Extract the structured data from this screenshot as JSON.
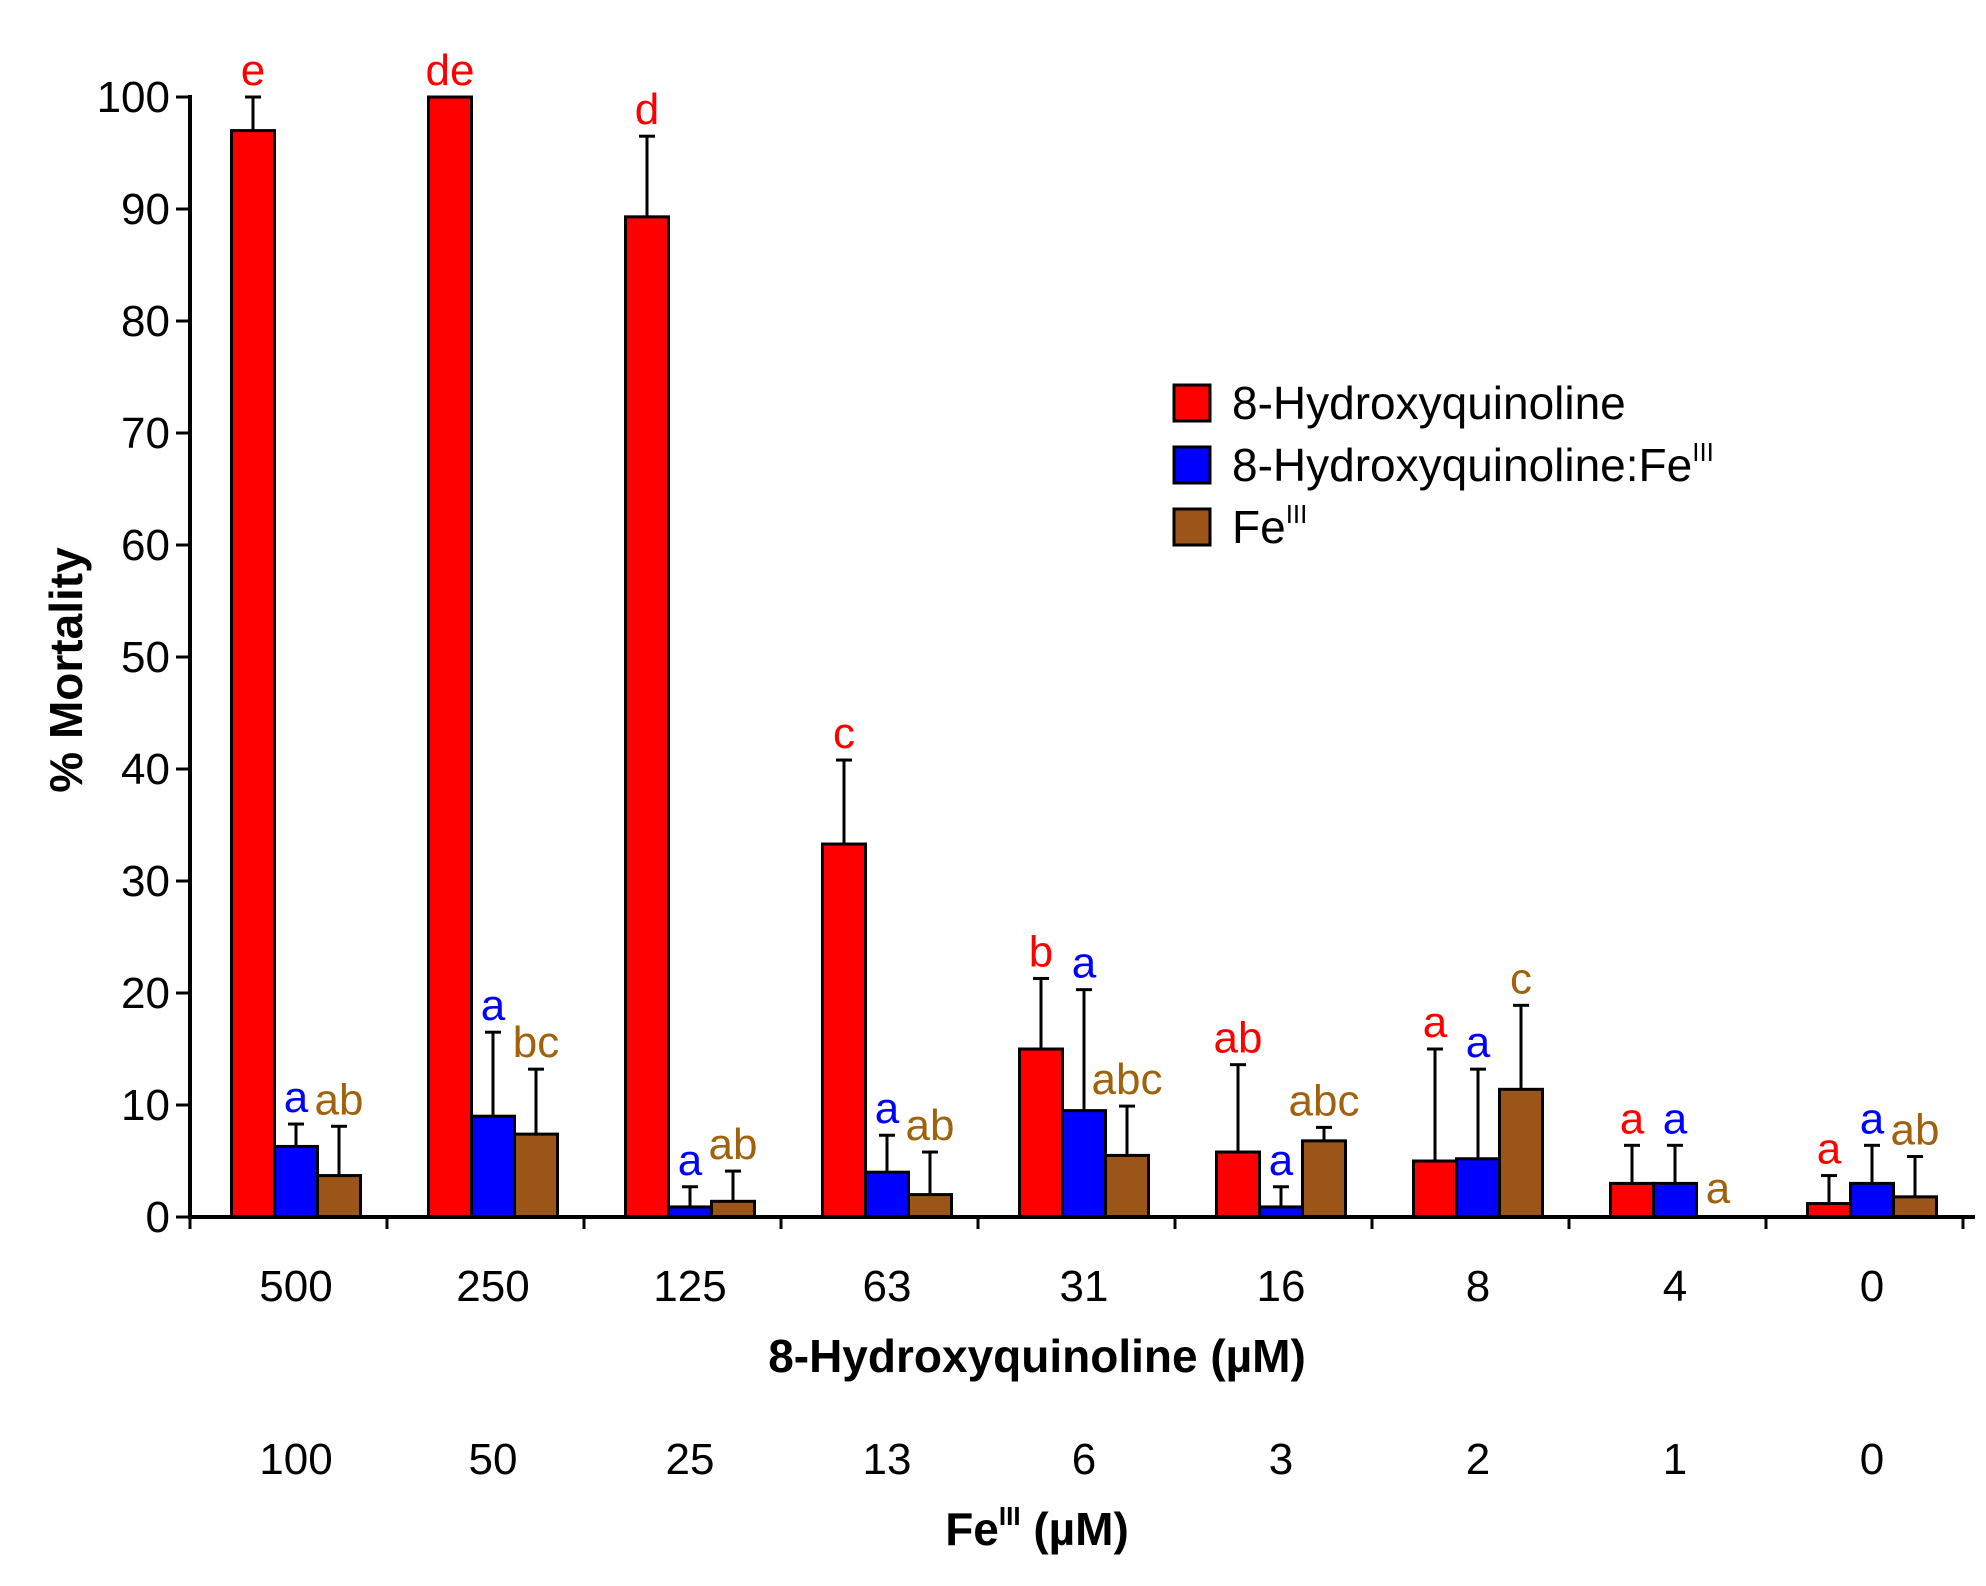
{
  "chart_data": {
    "type": "bar",
    "title": "",
    "ylabel": "% Mortality",
    "xlabel": "8-Hydroxyquinoline (µM)",
    "ylim": [
      0,
      100
    ],
    "yticks": [
      0,
      10,
      20,
      30,
      40,
      50,
      60,
      70,
      80,
      90,
      100
    ],
    "grid": false,
    "legend_position": "upper-right",
    "categories": [
      "500",
      "250",
      "125",
      "63",
      "31",
      "16",
      "8",
      "4",
      "0"
    ],
    "secondary_categories": [
      "100",
      "50",
      "25",
      "13",
      "6",
      "3",
      "2",
      "1",
      "0"
    ],
    "secondary_xlabel": {
      "base": "Fe",
      "superscript": "III",
      "suffix": " (µM)"
    },
    "series": [
      {
        "name": "8-Hydroxyquinoline",
        "color": "#ff0000",
        "letter_color": "#ff0000",
        "values": [
          97,
          100,
          89.3,
          33.3,
          15,
          5.8,
          5,
          3,
          1.2
        ],
        "errors": [
          3,
          0,
          7.2,
          7.5,
          6.3,
          7.8,
          10,
          3.4,
          2.5
        ],
        "letters": [
          "e",
          "de",
          "d",
          "c",
          "b",
          "ab",
          "a",
          "a",
          "a"
        ]
      },
      {
        "name": "8-Hydroxyquinoline:Fe",
        "legend_superscript": "III",
        "color": "#0000ff",
        "letter_color": "#0000ff",
        "values": [
          6.3,
          9,
          0.9,
          4,
          9.5,
          0.9,
          5.2,
          3,
          3
        ],
        "errors": [
          2,
          7.5,
          1.8,
          3.3,
          10.8,
          1.8,
          8,
          3.4,
          3.4
        ],
        "letters": [
          "a",
          "a",
          "a",
          "a",
          "a",
          "a",
          "a",
          "a",
          "a"
        ]
      },
      {
        "name": "Fe",
        "legend_superscript": "III",
        "color": "#9c5518",
        "letter_color": "#a0620c",
        "values": [
          3.7,
          7.4,
          1.4,
          2,
          5.5,
          6.8,
          11.4,
          0,
          1.8
        ],
        "errors": [
          4.4,
          5.8,
          2.7,
          3.8,
          4.4,
          1.2,
          7.5,
          0,
          3.6
        ],
        "letters": [
          "ab",
          "bc",
          "ab",
          "ab",
          "abc",
          "abc",
          "c",
          "a",
          "ab"
        ]
      }
    ]
  }
}
